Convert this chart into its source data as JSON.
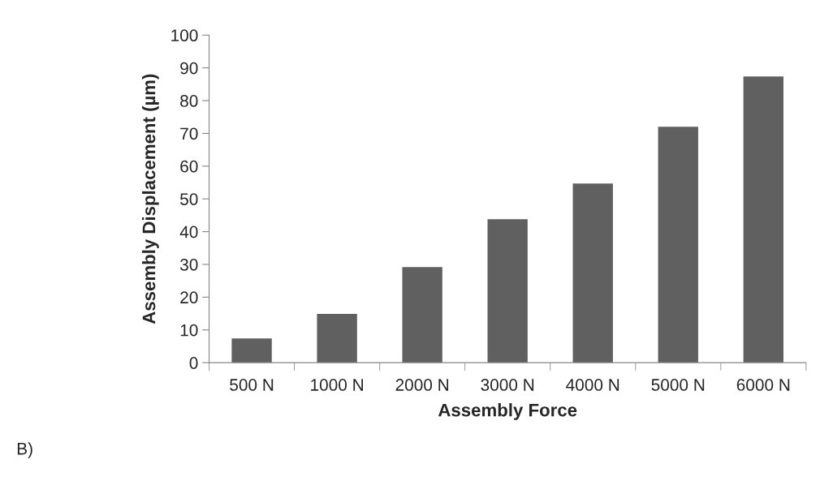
{
  "chart_data": {
    "type": "bar",
    "xlabel": "Assembly Force",
    "ylabel": "Assembly Displacement (µm)",
    "categories": [
      "500 N",
      "1000 N",
      "2000 N",
      "3000 N",
      "4000 N",
      "5000 N",
      "6000 N"
    ],
    "values": [
      7.4,
      14.9,
      29.2,
      43.8,
      54.7,
      72,
      87.4
    ],
    "color": "#606060",
    "ylim": [
      0,
      100
    ],
    "yticks": [
      0,
      10,
      20,
      30,
      40,
      50,
      60,
      70,
      80,
      90,
      100
    ],
    "grid": false,
    "annotations": [
      "B)"
    ]
  }
}
